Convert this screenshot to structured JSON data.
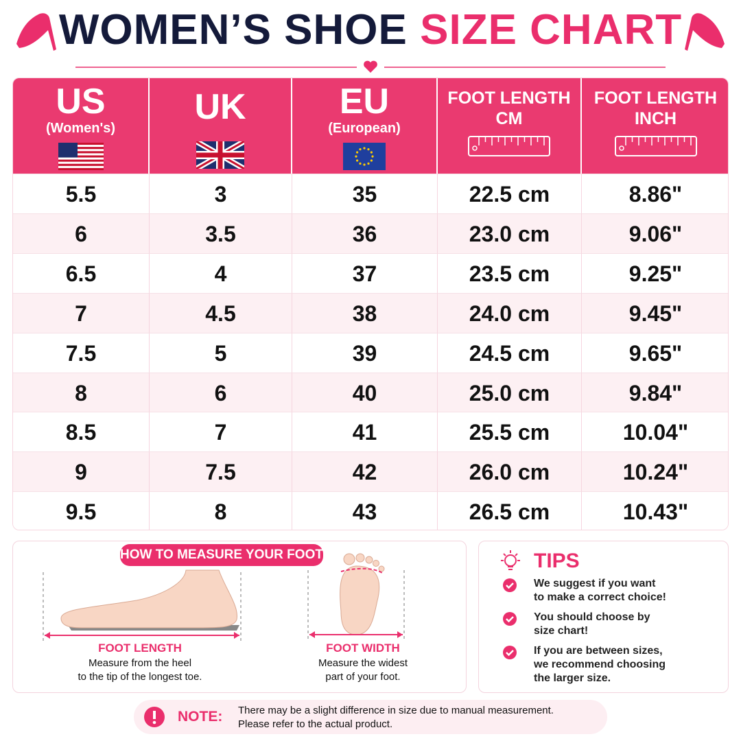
{
  "header": {
    "title": "WOMEN’S SHOE",
    "title_highlight": "SIZE CHART"
  },
  "table": {
    "columns": [
      {
        "title": "US",
        "subtitle": "(Women's)"
      },
      {
        "title": "UK"
      },
      {
        "title": "EU",
        "subtitle": "(European)"
      },
      {
        "title": "FOOT LENGTH",
        "subtitle": "CM"
      },
      {
        "title": "FOOT LENGTH",
        "subtitle": "INCH"
      }
    ],
    "rows": [
      [
        "5.5",
        "3",
        "35",
        "22.5 cm",
        "8.86\""
      ],
      [
        "6",
        "3.5",
        "36",
        "23.0 cm",
        "9.06\""
      ],
      [
        "6.5",
        "4",
        "37",
        "23.5 cm",
        "9.25\""
      ],
      [
        "7",
        "4.5",
        "38",
        "24.0 cm",
        "9.45\""
      ],
      [
        "7.5",
        "5",
        "39",
        "24.5 cm",
        "9.65\""
      ],
      [
        "8",
        "6",
        "40",
        "25.0 cm",
        "9.84\""
      ],
      [
        "8.5",
        "7",
        "41",
        "25.5 cm",
        "10.04\""
      ],
      [
        "9",
        "7.5",
        "42",
        "26.0 cm",
        "10.24\""
      ],
      [
        "9.5",
        "8",
        "43",
        "26.5 cm",
        "10.43\""
      ]
    ]
  },
  "measure": {
    "badge": "HOW TO MEASURE YOUR FOOT",
    "length_label": "FOOT LENGTH",
    "length_desc": [
      "Measure from the heel",
      "to the tip of the longest toe."
    ],
    "width_label": "FOOT WIDTH",
    "width_desc": [
      "Measure the widest",
      "part of your foot."
    ]
  },
  "tips": {
    "title": "TIPS",
    "items": [
      [
        "We suggest if you want",
        "to make a correct choice!"
      ],
      [
        "You should choose by",
        "size chart!"
      ],
      [
        "If you are between sizes,",
        "we recommend choosing",
        "the larger size."
      ]
    ]
  },
  "note": {
    "label": "NOTE:",
    "lines": [
      "There may be a slight difference in size due to manual measurement.",
      "Please refer to the actual product."
    ]
  }
}
